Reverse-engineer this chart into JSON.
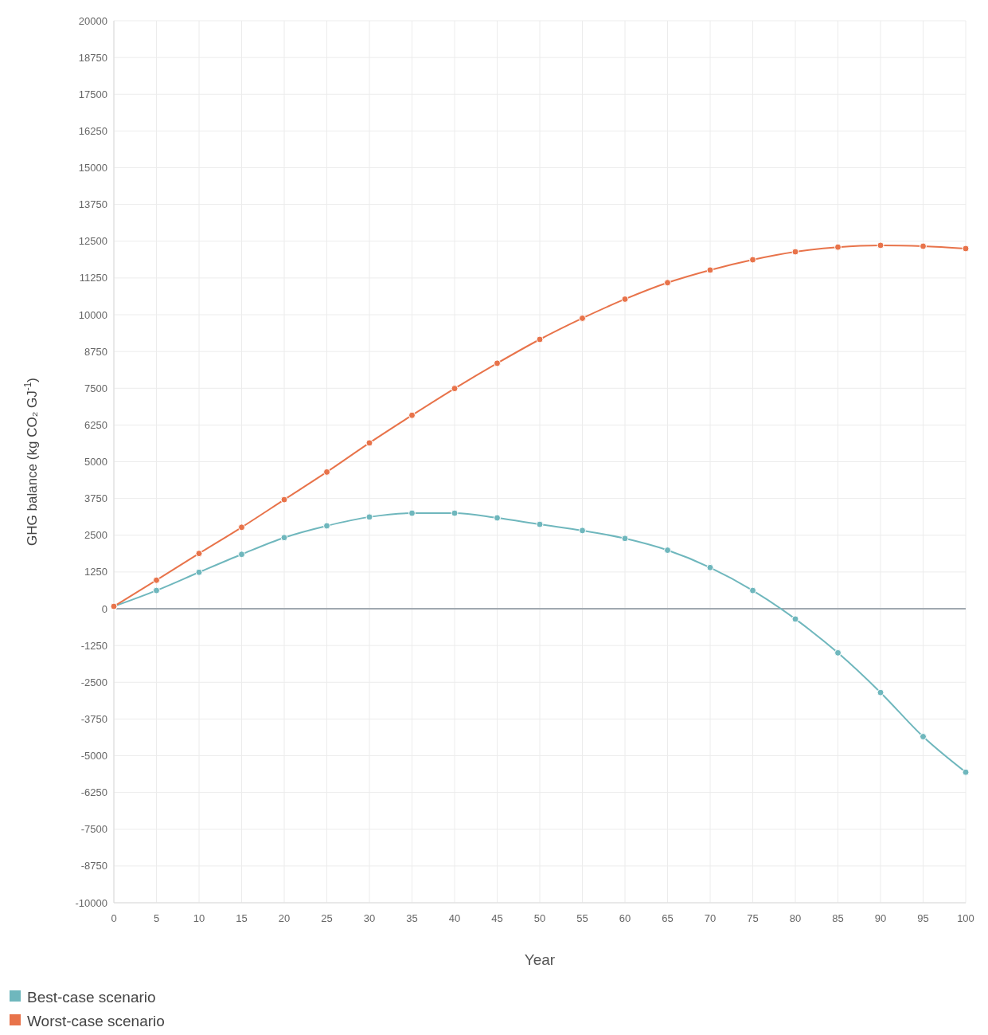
{
  "chart_data": {
    "type": "line",
    "xlabel": "Year",
    "ylabel": "GHG balance (kg CO₂ GJ$^{-1}$)",
    "x": [
      0,
      5,
      10,
      15,
      20,
      25,
      30,
      35,
      40,
      45,
      50,
      55,
      60,
      65,
      70,
      75,
      80,
      85,
      90,
      95,
      100
    ],
    "series": [
      {
        "name": "Best-case scenario",
        "color": "#6fb7bd",
        "values": [
          80,
          620,
          1240,
          1850,
          2420,
          2820,
          3120,
          3250,
          3250,
          3090,
          2870,
          2660,
          2390,
          1990,
          1400,
          620,
          -350,
          -1500,
          -2850,
          -4350,
          -5560
        ]
      },
      {
        "name": "Worst-case scenario",
        "color": "#e8734a",
        "values": [
          80,
          970,
          1880,
          2770,
          3710,
          4650,
          5640,
          6580,
          7490,
          8350,
          9160,
          9880,
          10530,
          11090,
          11520,
          11870,
          12140,
          12300,
          12360,
          12330,
          12250
        ]
      }
    ],
    "xlim": [
      0,
      100
    ],
    "xticks": [
      0,
      5,
      10,
      15,
      20,
      25,
      30,
      35,
      40,
      45,
      50,
      55,
      60,
      65,
      70,
      75,
      80,
      85,
      90,
      95,
      100
    ],
    "ylim": [
      -10000,
      20000
    ],
    "yticks": [
      -10000,
      -8750,
      -7500,
      -6250,
      -5000,
      -3750,
      -2500,
      -1250,
      0,
      1250,
      2500,
      3750,
      5000,
      6250,
      7500,
      8750,
      10000,
      11250,
      12500,
      13750,
      15000,
      16250,
      17500,
      18750,
      20000
    ],
    "ref_lines": [
      {
        "axis": "y",
        "value": 0,
        "color": "#a0a8b0"
      }
    ],
    "grid": true,
    "legend": "bottom left",
    "marker": "circle",
    "line_style": "solid"
  }
}
